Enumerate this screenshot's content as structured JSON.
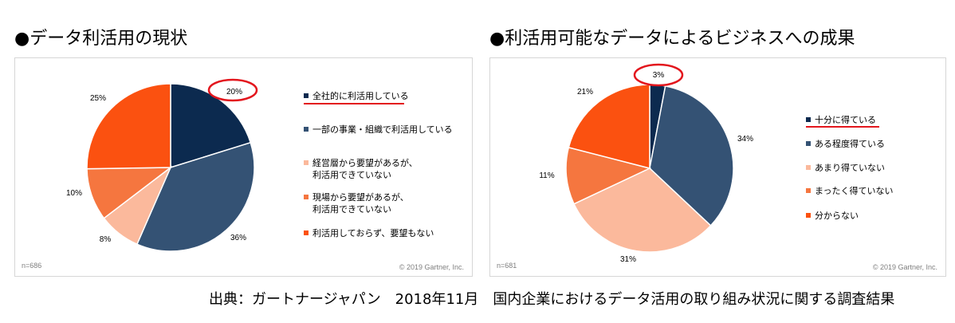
{
  "left": {
    "heading": "●データ利活用の現状",
    "n": "n=686",
    "copyright": "© 2019 Gartner, Inc.",
    "legend": [
      {
        "line1": "全社的に利活用している",
        "line2": ""
      },
      {
        "line1": "一部の事業・組織で利活用している",
        "line2": ""
      },
      {
        "line1": "経営層から要望があるが、",
        "line2": "利活用できていない"
      },
      {
        "line1": "現場から要望があるが、",
        "line2": "利活用できていない"
      },
      {
        "line1": "利活用しておらず、要望もない",
        "line2": ""
      }
    ]
  },
  "right": {
    "heading": "●利活用可能なデータによるビジネスへの成果",
    "n": "n=681",
    "copyright": "© 2019 Gartner, Inc.",
    "legend": [
      {
        "line1": "十分に得ている",
        "line2": ""
      },
      {
        "line1": "ある程度得ている",
        "line2": ""
      },
      {
        "line1": "あまり得ていない",
        "line2": ""
      },
      {
        "line1": "まったく得ていない",
        "line2": ""
      },
      {
        "line1": "分からない",
        "line2": ""
      }
    ]
  },
  "source": "出典：ガートナージャパン　2018年11月　国内企業におけるデータ活用の取り組み状況に関する調査結果",
  "colors": {
    "navy": "#0c2a4f",
    "steel": "#345274",
    "peach": "#fbb99c",
    "coral": "#f5763f",
    "orange": "#fb5110",
    "highlight": "#e3161d"
  },
  "chart_data": [
    {
      "type": "pie",
      "categories": [
        "全社的に利活用している",
        "一部の事業・組織で利活用している",
        "経営層から要望があるが、利活用できていない",
        "現場から要望があるが、利活用できていない",
        "利活用しておらず、要望もない"
      ],
      "values": [
        20,
        36,
        8,
        10,
        25
      ],
      "value_labels": [
        "20%",
        "36%",
        "8%",
        "10%",
        "25%"
      ],
      "colors": [
        "#0c2a4f",
        "#345274",
        "#fbb99c",
        "#f5763f",
        "#fb5110"
      ],
      "highlighted": "全社的に利活用している"
    },
    {
      "type": "pie",
      "categories": [
        "十分に得ている",
        "ある程度得ている",
        "あまり得ていない",
        "まったく得ていない",
        "分からない"
      ],
      "values": [
        3,
        34,
        31,
        11,
        21
      ],
      "value_labels": [
        "3%",
        "34%",
        "31%",
        "11%",
        "21%"
      ],
      "colors": [
        "#0c2a4f",
        "#345274",
        "#fbb99c",
        "#f5763f",
        "#fb5110"
      ],
      "highlighted": "十分に得ている"
    }
  ]
}
